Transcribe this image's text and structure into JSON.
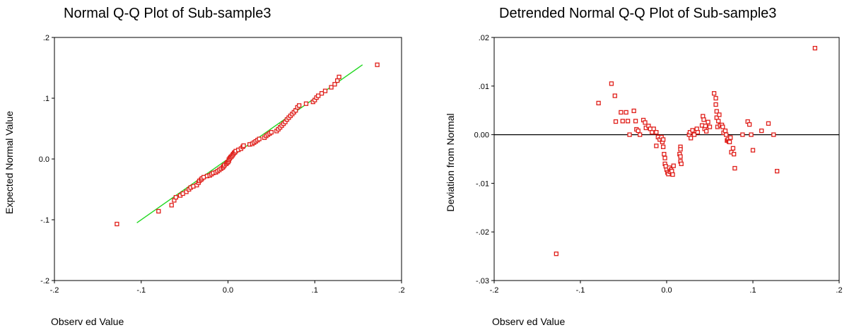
{
  "charts": [
    {
      "title": "Normal Q-Q Plot of Sub-sample3",
      "xlabel": "Observ ed Value",
      "ylabel": "Expected Normal Value",
      "xticks": [
        {
          "v": -0.2,
          "label": "-.2"
        },
        {
          "v": -0.1,
          "label": "-.1"
        },
        {
          "v": 0.0,
          "label": "0.0"
        },
        {
          "v": 0.1,
          "label": ".1"
        },
        {
          "v": 0.2,
          "label": ".2"
        }
      ],
      "yticks": [
        {
          "v": -0.2,
          "label": "-.2"
        },
        {
          "v": -0.1,
          "label": "-.1"
        },
        {
          "v": 0.0,
          "label": "0.0"
        },
        {
          "v": 0.1,
          "label": ".1"
        },
        {
          "v": 0.2,
          "label": ".2"
        }
      ]
    },
    {
      "title": "Detrended Normal Q-Q Plot of Sub-sample3",
      "xlabel": "Observ ed Value",
      "ylabel": "Deviation from Normal",
      "xticks": [
        {
          "v": -0.2,
          "label": "-.2"
        },
        {
          "v": -0.1,
          "label": "-.1"
        },
        {
          "v": 0.0,
          "label": "0.0"
        },
        {
          "v": 0.1,
          "label": ".1"
        },
        {
          "v": 0.2,
          "label": ".2"
        }
      ],
      "yticks": [
        {
          "v": 0.02,
          "label": ".02"
        },
        {
          "v": 0.01,
          "label": ".01"
        },
        {
          "v": 0.0,
          "label": "0.00"
        },
        {
          "v": -0.01,
          "label": "-.01"
        },
        {
          "v": -0.02,
          "label": "-.02"
        },
        {
          "v": -0.03,
          "label": "-.03"
        }
      ]
    }
  ],
  "chart_data": [
    {
      "type": "scatter",
      "title": "Normal Q-Q Plot of Sub-sample3",
      "xlabel": "Observ ed Value",
      "ylabel": "Expected Normal Value",
      "xlim": [
        -0.2,
        0.2
      ],
      "ylim": [
        -0.2,
        0.2
      ],
      "grid": false,
      "marker_color": "#e0201b",
      "reference_line": {
        "color": "#22d822",
        "from": [
          -0.105,
          -0.105
        ],
        "to": [
          0.155,
          0.155
        ]
      },
      "points": [
        [
          -0.128,
          -0.107
        ],
        [
          -0.08,
          -0.086
        ],
        [
          -0.065,
          -0.076
        ],
        [
          -0.062,
          -0.068
        ],
        [
          -0.06,
          -0.063
        ],
        [
          -0.055,
          -0.06
        ],
        [
          -0.052,
          -0.057
        ],
        [
          -0.048,
          -0.054
        ],
        [
          -0.045,
          -0.05
        ],
        [
          -0.043,
          -0.047
        ],
        [
          -0.04,
          -0.045
        ],
        [
          -0.036,
          -0.043
        ],
        [
          -0.034,
          -0.039
        ],
        [
          -0.033,
          -0.036
        ],
        [
          -0.031,
          -0.034
        ],
        [
          -0.03,
          -0.032
        ],
        [
          -0.028,
          -0.03
        ],
        [
          -0.024,
          -0.028
        ],
        [
          -0.021,
          -0.027
        ],
        [
          -0.019,
          -0.025
        ],
        [
          -0.017,
          -0.023
        ],
        [
          -0.014,
          -0.022
        ],
        [
          -0.012,
          -0.02
        ],
        [
          -0.01,
          -0.018
        ],
        [
          -0.008,
          -0.016
        ],
        [
          -0.006,
          -0.014
        ],
        [
          -0.005,
          -0.012
        ],
        [
          -0.004,
          -0.01
        ],
        [
          -0.002,
          -0.008
        ],
        [
          -0.001,
          -0.006
        ],
        [
          0.0,
          -0.005
        ],
        [
          0.001,
          -0.003
        ],
        [
          0.001,
          -0.001
        ],
        [
          0.002,
          0.001
        ],
        [
          0.003,
          0.003
        ],
        [
          0.004,
          0.004
        ],
        [
          0.005,
          0.006
        ],
        [
          0.006,
          0.008
        ],
        [
          0.007,
          0.01
        ],
        [
          0.008,
          0.011
        ],
        [
          0.009,
          0.013
        ],
        [
          0.012,
          0.015
        ],
        [
          0.015,
          0.017
        ],
        [
          0.017,
          0.02
        ],
        [
          0.018,
          0.022
        ],
        [
          0.025,
          0.024
        ],
        [
          0.028,
          0.025
        ],
        [
          0.03,
          0.027
        ],
        [
          0.032,
          0.029
        ],
        [
          0.034,
          0.031
        ],
        [
          0.036,
          0.033
        ],
        [
          0.042,
          0.035
        ],
        [
          0.044,
          0.038
        ],
        [
          0.046,
          0.04
        ],
        [
          0.048,
          0.042
        ],
        [
          0.05,
          0.044
        ],
        [
          0.056,
          0.046
        ],
        [
          0.058,
          0.049
        ],
        [
          0.06,
          0.052
        ],
        [
          0.062,
          0.055
        ],
        [
          0.064,
          0.058
        ],
        [
          0.066,
          0.061
        ],
        [
          0.068,
          0.065
        ],
        [
          0.07,
          0.068
        ],
        [
          0.072,
          0.071
        ],
        [
          0.074,
          0.074
        ],
        [
          0.076,
          0.077
        ],
        [
          0.078,
          0.08
        ],
        [
          0.08,
          0.085
        ],
        [
          0.082,
          0.088
        ],
        [
          0.09,
          0.091
        ],
        [
          0.098,
          0.094
        ],
        [
          0.1,
          0.097
        ],
        [
          0.102,
          0.101
        ],
        [
          0.104,
          0.104
        ],
        [
          0.108,
          0.108
        ],
        [
          0.112,
          0.112
        ],
        [
          0.119,
          0.118
        ],
        [
          0.123,
          0.123
        ],
        [
          0.126,
          0.129
        ],
        [
          0.128,
          0.135
        ],
        [
          0.172,
          0.155
        ]
      ]
    },
    {
      "type": "scatter",
      "title": "Detrended Normal Q-Q Plot of Sub-sample3",
      "xlabel": "Observ ed Value",
      "ylabel": "Deviation from Normal",
      "xlim": [
        -0.2,
        0.2
      ],
      "ylim": [
        -0.03,
        0.02
      ],
      "grid": false,
      "marker_color": "#e0201b",
      "reference_line": {
        "color": "#000000",
        "y": 0.0
      },
      "points": [
        [
          -0.128,
          -0.0245
        ],
        [
          -0.079,
          0.0065
        ],
        [
          -0.064,
          0.0105
        ],
        [
          -0.06,
          0.008
        ],
        [
          -0.059,
          0.0027
        ],
        [
          -0.053,
          0.0046
        ],
        [
          -0.051,
          0.0028
        ],
        [
          -0.047,
          0.0046
        ],
        [
          -0.045,
          0.0028
        ],
        [
          -0.043,
          0.0
        ],
        [
          -0.038,
          0.0049
        ],
        [
          -0.036,
          0.0028
        ],
        [
          -0.035,
          0.0011
        ],
        [
          -0.033,
          0.0008
        ],
        [
          -0.031,
          0.0
        ],
        [
          -0.027,
          0.003
        ],
        [
          -0.025,
          0.0025
        ],
        [
          -0.024,
          0.0014
        ],
        [
          -0.021,
          0.0018
        ],
        [
          -0.019,
          0.0012
        ],
        [
          -0.017,
          0.0005
        ],
        [
          -0.015,
          0.0012
        ],
        [
          -0.012,
          0.0005
        ],
        [
          -0.012,
          -0.0023
        ],
        [
          -0.01,
          -0.0005
        ],
        [
          -0.008,
          -0.001
        ],
        [
          -0.006,
          -0.0005
        ],
        [
          -0.005,
          -0.0015
        ],
        [
          -0.004,
          -0.001
        ],
        [
          -0.004,
          -0.0025
        ],
        [
          -0.003,
          -0.004
        ],
        [
          -0.002,
          -0.0048
        ],
        [
          -0.002,
          -0.006
        ],
        [
          -0.001,
          -0.0065
        ],
        [
          0.0,
          -0.0072
        ],
        [
          0.001,
          -0.0078
        ],
        [
          0.002,
          -0.0081
        ],
        [
          0.003,
          -0.0068
        ],
        [
          0.004,
          -0.0076
        ],
        [
          0.005,
          -0.0072
        ],
        [
          0.006,
          -0.0075
        ],
        [
          0.007,
          -0.0082
        ],
        [
          0.008,
          -0.0064
        ],
        [
          0.015,
          -0.004
        ],
        [
          0.016,
          -0.0045
        ],
        [
          0.016,
          -0.0055
        ],
        [
          0.017,
          -0.006
        ],
        [
          0.016,
          -0.0025
        ],
        [
          0.016,
          -0.003
        ],
        [
          0.026,
          0.0
        ],
        [
          0.027,
          0.0005
        ],
        [
          0.028,
          -0.0007
        ],
        [
          0.03,
          0.0009
        ],
        [
          0.032,
          0.0
        ],
        [
          0.034,
          0.0008
        ],
        [
          0.035,
          0.0012
        ],
        [
          0.036,
          0.0005
        ],
        [
          0.041,
          0.0019
        ],
        [
          0.042,
          0.0038
        ],
        [
          0.043,
          0.0031
        ],
        [
          0.044,
          0.0012
        ],
        [
          0.045,
          0.0018
        ],
        [
          0.046,
          0.0007
        ],
        [
          0.048,
          0.0026
        ],
        [
          0.05,
          0.0016
        ],
        [
          0.055,
          0.0085
        ],
        [
          0.057,
          0.0075
        ],
        [
          0.057,
          0.0062
        ],
        [
          0.058,
          0.0048
        ],
        [
          0.058,
          0.0035
        ],
        [
          0.059,
          0.0016
        ],
        [
          0.06,
          0.0028
        ],
        [
          0.061,
          0.0041
        ],
        [
          0.062,
          0.0019
        ],
        [
          0.064,
          0.002
        ],
        [
          0.065,
          0.0016
        ],
        [
          0.066,
          0.0004
        ],
        [
          0.068,
          0.0008
        ],
        [
          0.069,
          0.0
        ],
        [
          0.07,
          -0.0012
        ],
        [
          0.071,
          -0.001
        ],
        [
          0.072,
          -0.0014
        ],
        [
          0.073,
          -0.0015
        ],
        [
          0.074,
          -0.0006
        ],
        [
          0.075,
          -0.0036
        ],
        [
          0.077,
          -0.0028
        ],
        [
          0.078,
          -0.004
        ],
        [
          0.079,
          -0.0069
        ],
        [
          0.088,
          0.0
        ],
        [
          0.094,
          0.0027
        ],
        [
          0.096,
          0.0021
        ],
        [
          0.098,
          0.0
        ],
        [
          0.1,
          -0.0032
        ],
        [
          0.11,
          0.0008
        ],
        [
          0.118,
          0.0023
        ],
        [
          0.124,
          0.0
        ],
        [
          0.128,
          -0.0075
        ],
        [
          0.172,
          0.0178
        ]
      ]
    }
  ]
}
